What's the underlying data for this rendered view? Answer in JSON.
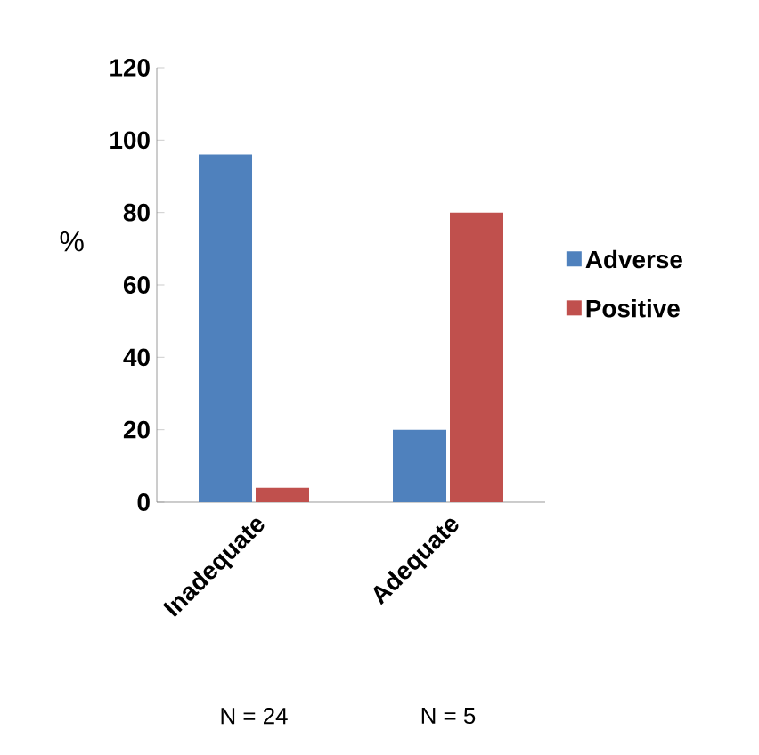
{
  "chart_data": {
    "type": "bar",
    "ylabel": "%",
    "categories": [
      "Inadequate",
      "Adequate"
    ],
    "series": [
      {
        "name": "Adverse",
        "color": "#4f81bd",
        "values": [
          96,
          20
        ]
      },
      {
        "name": "Positive",
        "color": "#c0504d",
        "values": [
          4,
          80
        ]
      }
    ],
    "ylim": [
      0,
      120
    ],
    "yticks": [
      0,
      20,
      40,
      60,
      80,
      100,
      120
    ],
    "legend": "right",
    "grid": false,
    "annotations": [
      "N = 24",
      "N = 5"
    ]
  }
}
